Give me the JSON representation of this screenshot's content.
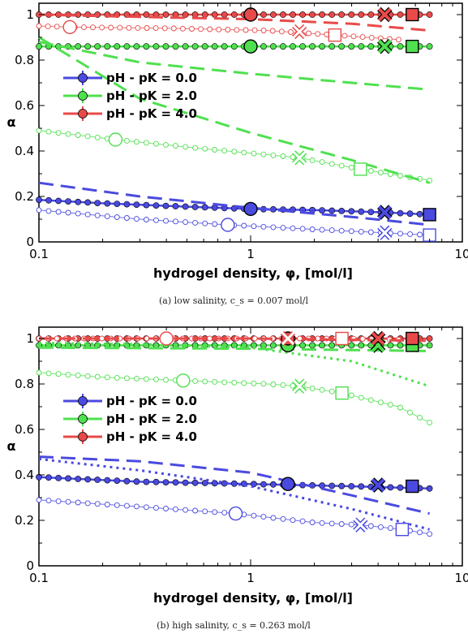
{
  "figure": {
    "panels": [
      {
        "ylabel": "α",
        "xlabel": "hydrogel density, φ, [mol/l]",
        "caption": "(a) low salinity, c_s = 0.007 mol/l",
        "xticks": [
          "0.1",
          "1",
          "10"
        ],
        "yticks": [
          "0",
          "0.2",
          "0.4",
          "0.6",
          "0.8",
          "1"
        ],
        "legend": [
          "pH - pK = 0.0",
          "pH - pK = 2.0",
          "pH - pK = 4.0"
        ]
      },
      {
        "ylabel": "α",
        "xlabel": "hydrogel density, φ, [mol/l]",
        "caption": "(b) high salinity, c_s = 0.263 mol/l",
        "xticks": [
          "0.1",
          "1",
          "10"
        ],
        "yticks": [
          "0",
          "0.2",
          "0.4",
          "0.6",
          "0.8",
          "1"
        ],
        "legend": [
          "pH - pK = 0.0",
          "pH - pK = 2.0",
          "pH - pK = 4.0"
        ]
      }
    ]
  },
  "colors": {
    "blue": "#4a4ae0",
    "green": "#4fe04f",
    "red": "#e84a4a"
  },
  "chart_data": [
    {
      "type": "line",
      "xscale": "log",
      "xlim": [
        0.1,
        10
      ],
      "ylim": [
        0,
        1.05
      ],
      "xlabel": "hydrogel density, φ, [mol/l]",
      "ylabel": "α",
      "legend_position": "middle-left",
      "series": [
        {
          "name": "pH - pK = 0.0",
          "color": "blue",
          "style": "solid-filled",
          "x": [
            0.1,
            0.2,
            0.5,
            1,
            2,
            4.3,
            7
          ],
          "y": [
            0.185,
            0.17,
            0.155,
            0.145,
            0.14,
            0.13,
            0.12
          ]
        },
        {
          "name": "pH - pK = 2.0",
          "color": "green",
          "style": "solid-filled",
          "x": [
            0.1,
            0.3,
            1,
            3,
            7
          ],
          "y": [
            0.86,
            0.86,
            0.86,
            0.86,
            0.86
          ]
        },
        {
          "name": "pH - pK = 4.0",
          "color": "red",
          "style": "solid-filled",
          "x": [
            0.1,
            0.3,
            1,
            3,
            7
          ],
          "y": [
            1.0,
            1.0,
            1.0,
            1.0,
            1.0
          ]
        },
        {
          "color": "blue",
          "style": "open",
          "x": [
            0.1,
            0.3,
            0.78,
            2,
            4.3,
            7
          ],
          "y": [
            0.14,
            0.1,
            0.075,
            0.055,
            0.04,
            0.03
          ]
        },
        {
          "color": "green",
          "style": "open",
          "x": [
            0.1,
            0.23,
            0.6,
            1.7,
            3.3,
            7
          ],
          "y": [
            0.49,
            0.45,
            0.41,
            0.37,
            0.32,
            0.27
          ]
        },
        {
          "color": "red",
          "style": "open",
          "x": [
            0.1,
            0.14,
            0.4,
            1.2,
            2.5,
            5
          ],
          "y": [
            0.95,
            0.945,
            0.94,
            0.93,
            0.91,
            0.89
          ]
        },
        {
          "color": "blue",
          "style": "dashed",
          "x": [
            0.1,
            0.3,
            1,
            3,
            7
          ],
          "y": [
            0.26,
            0.2,
            0.15,
            0.11,
            0.075
          ]
        },
        {
          "color": "green",
          "style": "dashed",
          "x": [
            0.1,
            0.3,
            1,
            3,
            7
          ],
          "y": [
            0.88,
            0.79,
            0.74,
            0.7,
            0.67
          ]
        },
        {
          "color": "green",
          "style": "dashed",
          "x": [
            0.1,
            0.3,
            1,
            3,
            7
          ],
          "y": [
            0.9,
            0.63,
            0.48,
            0.36,
            0.26
          ]
        },
        {
          "color": "red",
          "style": "dashed",
          "x": [
            0.1,
            0.3,
            1,
            3,
            7
          ],
          "y": [
            1.0,
            0.99,
            0.98,
            0.96,
            0.93
          ]
        }
      ],
      "markers": [
        {
          "series": "blue",
          "shape": "circle",
          "fill": true,
          "x": 1.0,
          "y": 0.145
        },
        {
          "series": "blue",
          "shape": "x",
          "fill": true,
          "x": 4.3,
          "y": 0.13
        },
        {
          "series": "blue",
          "shape": "square",
          "fill": true,
          "x": 7.0,
          "y": 0.12
        },
        {
          "series": "green",
          "shape": "circle",
          "fill": true,
          "x": 1.0,
          "y": 0.86
        },
        {
          "series": "green",
          "shape": "x",
          "fill": true,
          "x": 4.3,
          "y": 0.86
        },
        {
          "series": "green",
          "shape": "square",
          "fill": true,
          "x": 5.8,
          "y": 0.86
        },
        {
          "series": "red",
          "shape": "circle",
          "fill": true,
          "x": 1.0,
          "y": 1.0
        },
        {
          "series": "red",
          "shape": "x",
          "fill": true,
          "x": 4.3,
          "y": 1.0
        },
        {
          "series": "red",
          "shape": "square",
          "fill": true,
          "x": 5.8,
          "y": 1.0
        },
        {
          "series": "blue",
          "shape": "circle",
          "fill": false,
          "x": 0.78,
          "y": 0.075
        },
        {
          "series": "blue",
          "shape": "x",
          "fill": false,
          "x": 4.3,
          "y": 0.04
        },
        {
          "series": "blue",
          "shape": "square",
          "fill": false,
          "x": 7.0,
          "y": 0.03
        },
        {
          "series": "green",
          "shape": "circle",
          "fill": false,
          "x": 0.23,
          "y": 0.45
        },
        {
          "series": "green",
          "shape": "x",
          "fill": false,
          "x": 1.7,
          "y": 0.37
        },
        {
          "series": "green",
          "shape": "square",
          "fill": false,
          "x": 3.3,
          "y": 0.32
        },
        {
          "series": "red",
          "shape": "circle",
          "fill": false,
          "x": 0.14,
          "y": 0.945
        },
        {
          "series": "red",
          "shape": "x",
          "fill": false,
          "x": 1.7,
          "y": 0.925
        },
        {
          "series": "red",
          "shape": "square",
          "fill": false,
          "x": 2.5,
          "y": 0.91
        }
      ]
    },
    {
      "type": "line",
      "xscale": "log",
      "xlim": [
        0.1,
        10
      ],
      "ylim": [
        0,
        1.05
      ],
      "xlabel": "hydrogel density, φ, [mol/l]",
      "ylabel": "α",
      "legend_position": "middle-left",
      "series": [
        {
          "name": "pH - pK = 0.0",
          "color": "blue",
          "style": "solid-filled",
          "x": [
            0.1,
            0.3,
            1,
            3,
            7
          ],
          "y": [
            0.39,
            0.37,
            0.36,
            0.35,
            0.34
          ]
        },
        {
          "name": "pH - pK = 2.0",
          "color": "green",
          "style": "solid-filled",
          "x": [
            0.1,
            0.3,
            1,
            3,
            7
          ],
          "y": [
            0.97,
            0.97,
            0.97,
            0.97,
            0.97
          ]
        },
        {
          "name": "pH - pK = 4.0",
          "color": "red",
          "style": "solid-filled",
          "x": [
            0.1,
            0.3,
            1,
            3,
            7
          ],
          "y": [
            1.0,
            1.0,
            1.0,
            1.0,
            1.0
          ]
        },
        {
          "color": "blue",
          "style": "open",
          "x": [
            0.1,
            0.3,
            0.85,
            2,
            3.3,
            5.2,
            7
          ],
          "y": [
            0.29,
            0.26,
            0.23,
            0.19,
            0.18,
            0.16,
            0.14
          ]
        },
        {
          "color": "green",
          "style": "open",
          "x": [
            0.1,
            0.2,
            0.48,
            1.2,
            1.7,
            2.7,
            5,
            7
          ],
          "y": [
            0.85,
            0.83,
            0.815,
            0.8,
            0.79,
            0.76,
            0.7,
            0.63
          ]
        },
        {
          "color": "red",
          "style": "open",
          "x": [
            0.1,
            0.4,
            1,
            1.5,
            2.7,
            5
          ],
          "y": [
            1.0,
            1.0,
            1.0,
            1.0,
            1.0,
            0.995
          ]
        },
        {
          "color": "blue",
          "style": "dashed",
          "x": [
            0.1,
            0.3,
            1,
            3,
            7
          ],
          "y": [
            0.48,
            0.46,
            0.41,
            0.31,
            0.23
          ]
        },
        {
          "color": "blue",
          "style": "dotted",
          "x": [
            0.1,
            0.3,
            1,
            3,
            7
          ],
          "y": [
            0.47,
            0.42,
            0.35,
            0.25,
            0.16
          ]
        },
        {
          "color": "green",
          "style": "dotted",
          "x": [
            0.1,
            0.3,
            1,
            3,
            7
          ],
          "y": [
            0.98,
            0.975,
            0.96,
            0.9,
            0.79
          ]
        },
        {
          "color": "green",
          "style": "dashed",
          "x": [
            0.1,
            1,
            7
          ],
          "y": [
            0.96,
            0.955,
            0.945
          ]
        },
        {
          "color": "red",
          "style": "dashed",
          "x": [
            0.1,
            1,
            7
          ],
          "y": [
            1.0,
            1.0,
            0.99
          ]
        }
      ],
      "markers": [
        {
          "series": "blue",
          "shape": "circle",
          "fill": true,
          "x": 1.5,
          "y": 0.36
        },
        {
          "series": "blue",
          "shape": "x",
          "fill": true,
          "x": 4.0,
          "y": 0.355
        },
        {
          "series": "blue",
          "shape": "square",
          "fill": true,
          "x": 5.8,
          "y": 0.35
        },
        {
          "series": "green",
          "shape": "circle",
          "fill": true,
          "x": 1.5,
          "y": 0.97
        },
        {
          "series": "green",
          "shape": "x",
          "fill": true,
          "x": 4.0,
          "y": 0.97
        },
        {
          "series": "green",
          "shape": "square",
          "fill": true,
          "x": 5.8,
          "y": 0.97
        },
        {
          "series": "red",
          "shape": "circle",
          "fill": true,
          "x": 1.5,
          "y": 1.0
        },
        {
          "series": "red",
          "shape": "x",
          "fill": true,
          "x": 4.0,
          "y": 1.0
        },
        {
          "series": "red",
          "shape": "square",
          "fill": true,
          "x": 5.8,
          "y": 1.0
        },
        {
          "series": "blue",
          "shape": "circle",
          "fill": false,
          "x": 0.85,
          "y": 0.23
        },
        {
          "series": "blue",
          "shape": "x",
          "fill": false,
          "x": 3.3,
          "y": 0.18
        },
        {
          "series": "blue",
          "shape": "square",
          "fill": false,
          "x": 5.2,
          "y": 0.16
        },
        {
          "series": "green",
          "shape": "circle",
          "fill": false,
          "x": 0.48,
          "y": 0.815
        },
        {
          "series": "green",
          "shape": "x",
          "fill": false,
          "x": 1.7,
          "y": 0.79
        },
        {
          "series": "green",
          "shape": "square",
          "fill": false,
          "x": 2.7,
          "y": 0.76
        },
        {
          "series": "red",
          "shape": "circle",
          "fill": false,
          "x": 0.4,
          "y": 1.0
        },
        {
          "series": "red",
          "shape": "x",
          "fill": false,
          "x": 1.5,
          "y": 1.0
        },
        {
          "series": "red",
          "shape": "square",
          "fill": false,
          "x": 2.7,
          "y": 1.0
        }
      ]
    }
  ]
}
